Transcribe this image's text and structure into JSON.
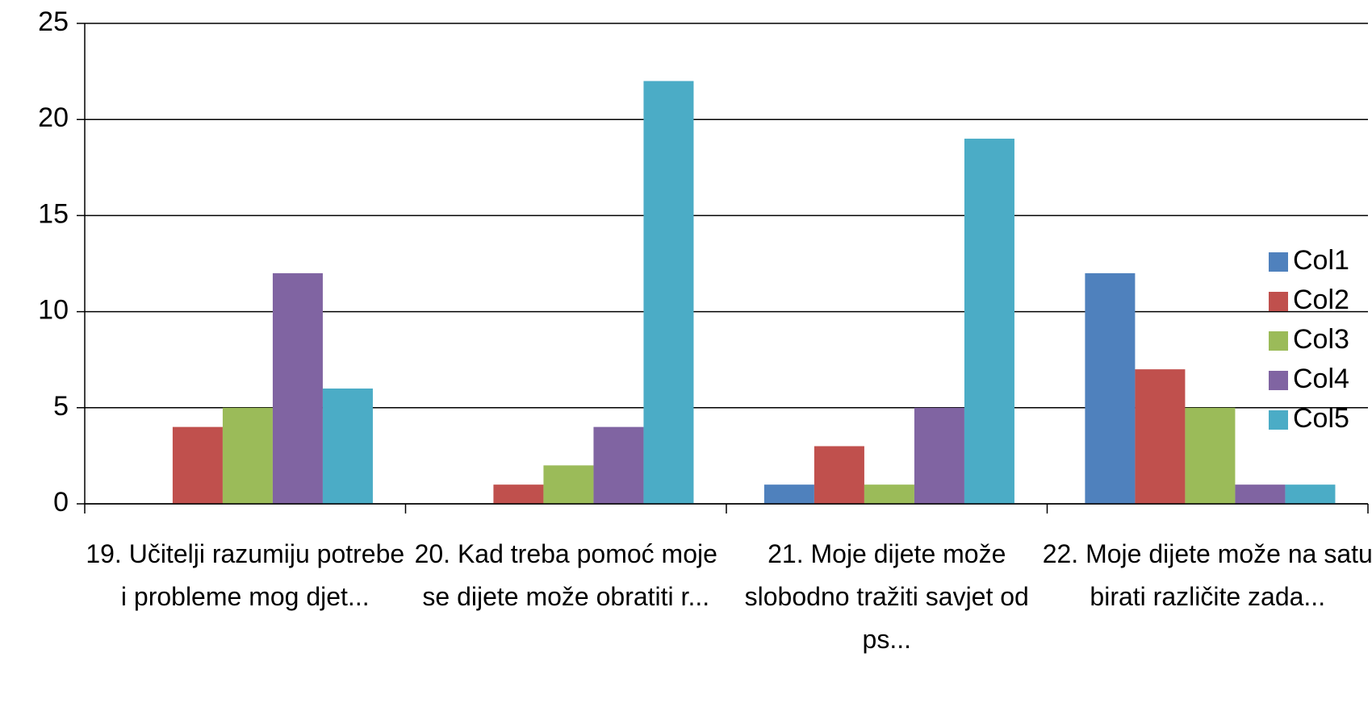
{
  "chart_data": {
    "type": "bar",
    "categories": [
      "19. Učitelji razumiju potrebe i probleme mog  djet...",
      "20. Kad treba pomoć moje se dijete može obratiti r...",
      "21. Moje dijete može slobodno tražiti savjet od ps...",
      "22. Moje dijete može na satu birati različite zada..."
    ],
    "series": [
      {
        "name": "Col1",
        "color": "#4f81bd",
        "values": [
          0,
          0,
          1,
          12
        ]
      },
      {
        "name": "Col2",
        "color": "#c0504d",
        "values": [
          4,
          1,
          3,
          7
        ]
      },
      {
        "name": "Col3",
        "color": "#9bbb59",
        "values": [
          5,
          2,
          1,
          5
        ]
      },
      {
        "name": "Col4",
        "color": "#8064a2",
        "values": [
          12,
          4,
          5,
          1
        ]
      },
      {
        "name": "Col5",
        "color": "#4bacc6",
        "values": [
          6,
          22,
          19,
          1
        ]
      }
    ],
    "ylim": [
      0,
      25
    ],
    "yticks": [
      0,
      5,
      10,
      15,
      20,
      25
    ],
    "grid": true,
    "legend": "right"
  }
}
